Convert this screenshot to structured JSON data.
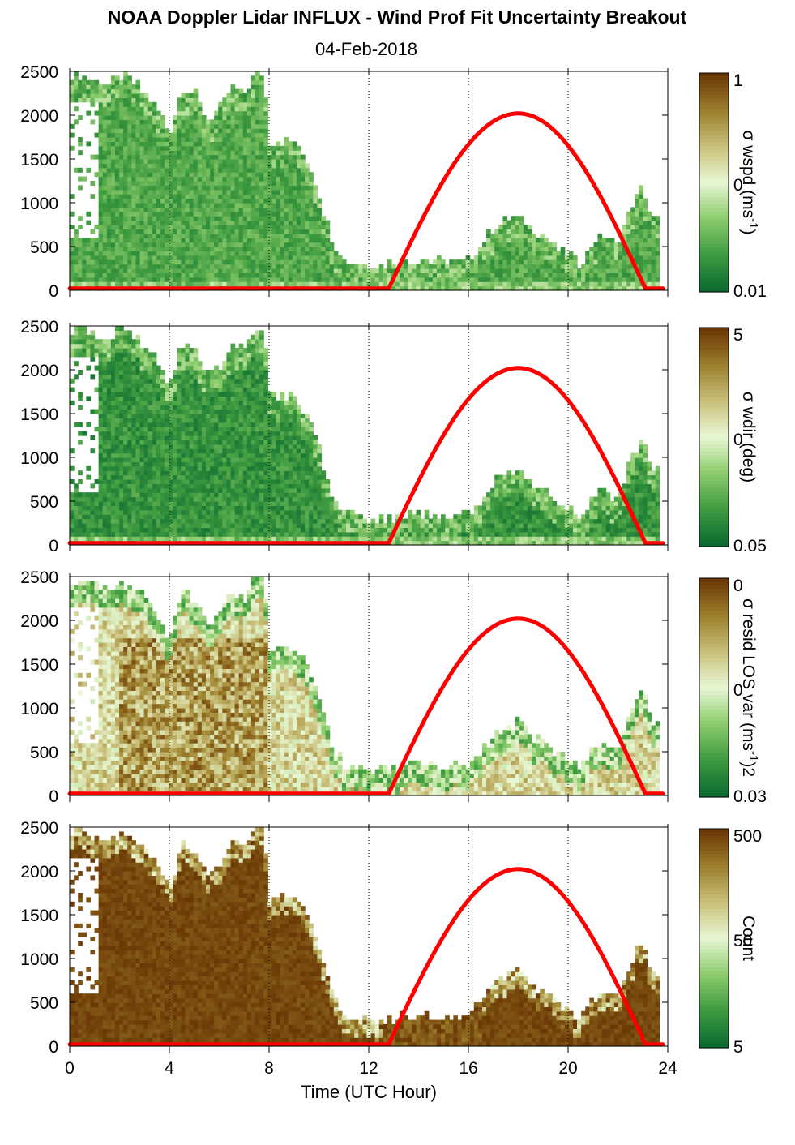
{
  "figure": {
    "title": "NOAA Doppler Lidar INFLUX - Wind Prof Fit Uncertainty Breakout",
    "date": "04-Feb-2018",
    "xlabel": "Time (UTC Hour)"
  },
  "colors": {
    "cmap": [
      "#0b6b30",
      "#3f9b40",
      "#8ccc6c",
      "#e8f7d4",
      "#c9c07a",
      "#9c7f2c",
      "#6b3805"
    ],
    "sun_curve": "#ff0000",
    "grid": "#000000"
  },
  "chart_data": [
    {
      "type": "heatmap",
      "name": "sigma-wspd",
      "x_range": [
        0,
        24
      ],
      "y_range": [
        0,
        2500
      ],
      "xticks": [
        0,
        4,
        8,
        12,
        16,
        20,
        24
      ],
      "yticks": [
        0,
        500,
        1000,
        1500,
        2000,
        2500
      ],
      "colorbar": {
        "label": "σ wspd (ms-1)",
        "label_main": "σ wspd (ms",
        "label_sup": "-1",
        "label_tail": ")",
        "scale": "log",
        "ticks": [
          "1",
          "0",
          "0.01"
        ]
      },
      "field_bias": 0.12,
      "sun_curve": {
        "rise_hour": 12.8,
        "peak_hour": 18.0,
        "set_hour": 23.1,
        "peak_height": 2000
      }
    },
    {
      "type": "heatmap",
      "name": "sigma-wdir",
      "x_range": [
        0,
        24
      ],
      "y_range": [
        0,
        2500
      ],
      "xticks": [
        0,
        4,
        8,
        12,
        16,
        20,
        24
      ],
      "yticks": [
        0,
        500,
        1000,
        1500,
        2000,
        2500
      ],
      "colorbar": {
        "label": "σ wdir (deg)",
        "label_main": "σ wdir (deg)",
        "label_sup": "",
        "label_tail": "",
        "scale": "log",
        "ticks": [
          "5",
          "0",
          "0.05"
        ]
      },
      "field_bias": 0.05,
      "sun_curve": {
        "rise_hour": 12.8,
        "peak_hour": 18.0,
        "set_hour": 23.1,
        "peak_height": 2000
      }
    },
    {
      "type": "heatmap",
      "name": "sigma-resid-los-var",
      "x_range": [
        0,
        24
      ],
      "y_range": [
        0,
        2500
      ],
      "xticks": [
        0,
        4,
        8,
        12,
        16,
        20,
        24
      ],
      "yticks": [
        0,
        500,
        1000,
        1500,
        2000,
        2500
      ],
      "colorbar": {
        "label": "σ resid LOS var (ms-1)2",
        "label_main": "σ resid LOS var (ms",
        "label_sup": "-1",
        "label_tail": ")2",
        "scale": "log",
        "ticks": [
          "0",
          "0",
          "0.03"
        ]
      },
      "field_bias": 0.55,
      "sun_curve": {
        "rise_hour": 12.8,
        "peak_hour": 18.0,
        "set_hour": 23.1,
        "peak_height": 2000
      }
    },
    {
      "type": "heatmap",
      "name": "count",
      "x_range": [
        0,
        24
      ],
      "y_range": [
        0,
        2500
      ],
      "xticks": [
        0,
        4,
        8,
        12,
        16,
        20,
        24
      ],
      "yticks": [
        0,
        500,
        1000,
        1500,
        2000,
        2500
      ],
      "colorbar": {
        "label": "Count",
        "label_main": "Count",
        "label_sup": "",
        "label_tail": "",
        "scale": "log",
        "ticks": [
          "500",
          "50",
          "5"
        ]
      },
      "field_bias": 1.0,
      "sun_curve": {
        "rise_hour": 12.8,
        "peak_hour": 18.0,
        "set_hour": 23.1,
        "peak_height": 2000
      }
    }
  ]
}
